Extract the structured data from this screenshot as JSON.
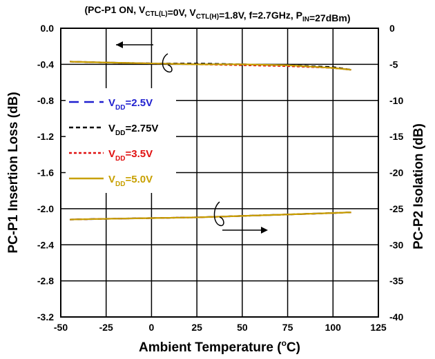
{
  "chart_data": {
    "type": "line",
    "title": "(PC-P1 ON, V_CTL(L)=0V, V_CTL(H)=1.8V, f=2.7GHz, P_IN=27dBm)",
    "xlabel": "Ambient Temperature  (°C)",
    "ylabel_left": "PC-P1 Insertion Loss  (dB)",
    "ylabel_right": "PC-P2 Isolation  (dB)",
    "xlim": [
      -50,
      125
    ],
    "ylim_left": [
      -3.2,
      0.0
    ],
    "ylim_right": [
      -40,
      0
    ],
    "x_ticks": [
      "-50",
      "-25",
      "0",
      "25",
      "50",
      "75",
      "100",
      "125"
    ],
    "y_ticks_left": [
      "0.0",
      "-0.4",
      "-0.8",
      "-1.2",
      "-1.6",
      "-2.0",
      "-2.4",
      "-2.8",
      "-3.2"
    ],
    "y_ticks_right": [
      "0",
      "-5",
      "-10",
      "-15",
      "-20",
      "-25",
      "-30",
      "-35",
      "-40"
    ],
    "grid": true,
    "legend_position": "left",
    "x": [
      -45,
      -25,
      0,
      25,
      50,
      75,
      100,
      110
    ],
    "series": [
      {
        "name": "V_DD=2.5V",
        "color": "#1f1fcf",
        "dash": "dashed",
        "insertion_loss": [
          -0.37,
          -0.38,
          -0.39,
          -0.4,
          -0.4,
          -0.41,
          -0.44,
          -0.46
        ],
        "isolation": [
          -26.5,
          -26.4,
          -26.3,
          -26.2,
          -26.0,
          -25.8,
          -25.6,
          -25.5
        ]
      },
      {
        "name": "V_DD=2.75V",
        "color": "#000000",
        "dash": "short-dash",
        "insertion_loss": [
          -0.37,
          -0.38,
          -0.39,
          -0.39,
          -0.4,
          -0.41,
          -0.43,
          -0.46
        ],
        "isolation": [
          -26.5,
          -26.4,
          -26.3,
          -26.2,
          -26.0,
          -25.8,
          -25.6,
          -25.5
        ]
      },
      {
        "name": "V_DD=3.5V",
        "color": "#e01010",
        "dash": "dotted",
        "insertion_loss": [
          -0.37,
          -0.38,
          -0.39,
          -0.4,
          -0.41,
          -0.42,
          -0.44,
          -0.46
        ],
        "isolation": [
          -26.5,
          -26.4,
          -26.3,
          -26.2,
          -26.0,
          -25.8,
          -25.6,
          -25.5
        ]
      },
      {
        "name": "V_DD=5.0V",
        "color": "#c8a000",
        "dash": "solid",
        "insertion_loss": [
          -0.37,
          -0.38,
          -0.39,
          -0.4,
          -0.4,
          -0.41,
          -0.44,
          -0.46
        ],
        "isolation": [
          -26.5,
          -26.4,
          -26.3,
          -26.2,
          -26.0,
          -25.8,
          -25.6,
          -25.5
        ]
      }
    ],
    "annotations": [
      {
        "type": "arrow",
        "direction": "left",
        "meaning": "upper curves read on left axis"
      },
      {
        "type": "arrow",
        "direction": "right",
        "meaning": "lower curves read on right axis"
      }
    ]
  }
}
